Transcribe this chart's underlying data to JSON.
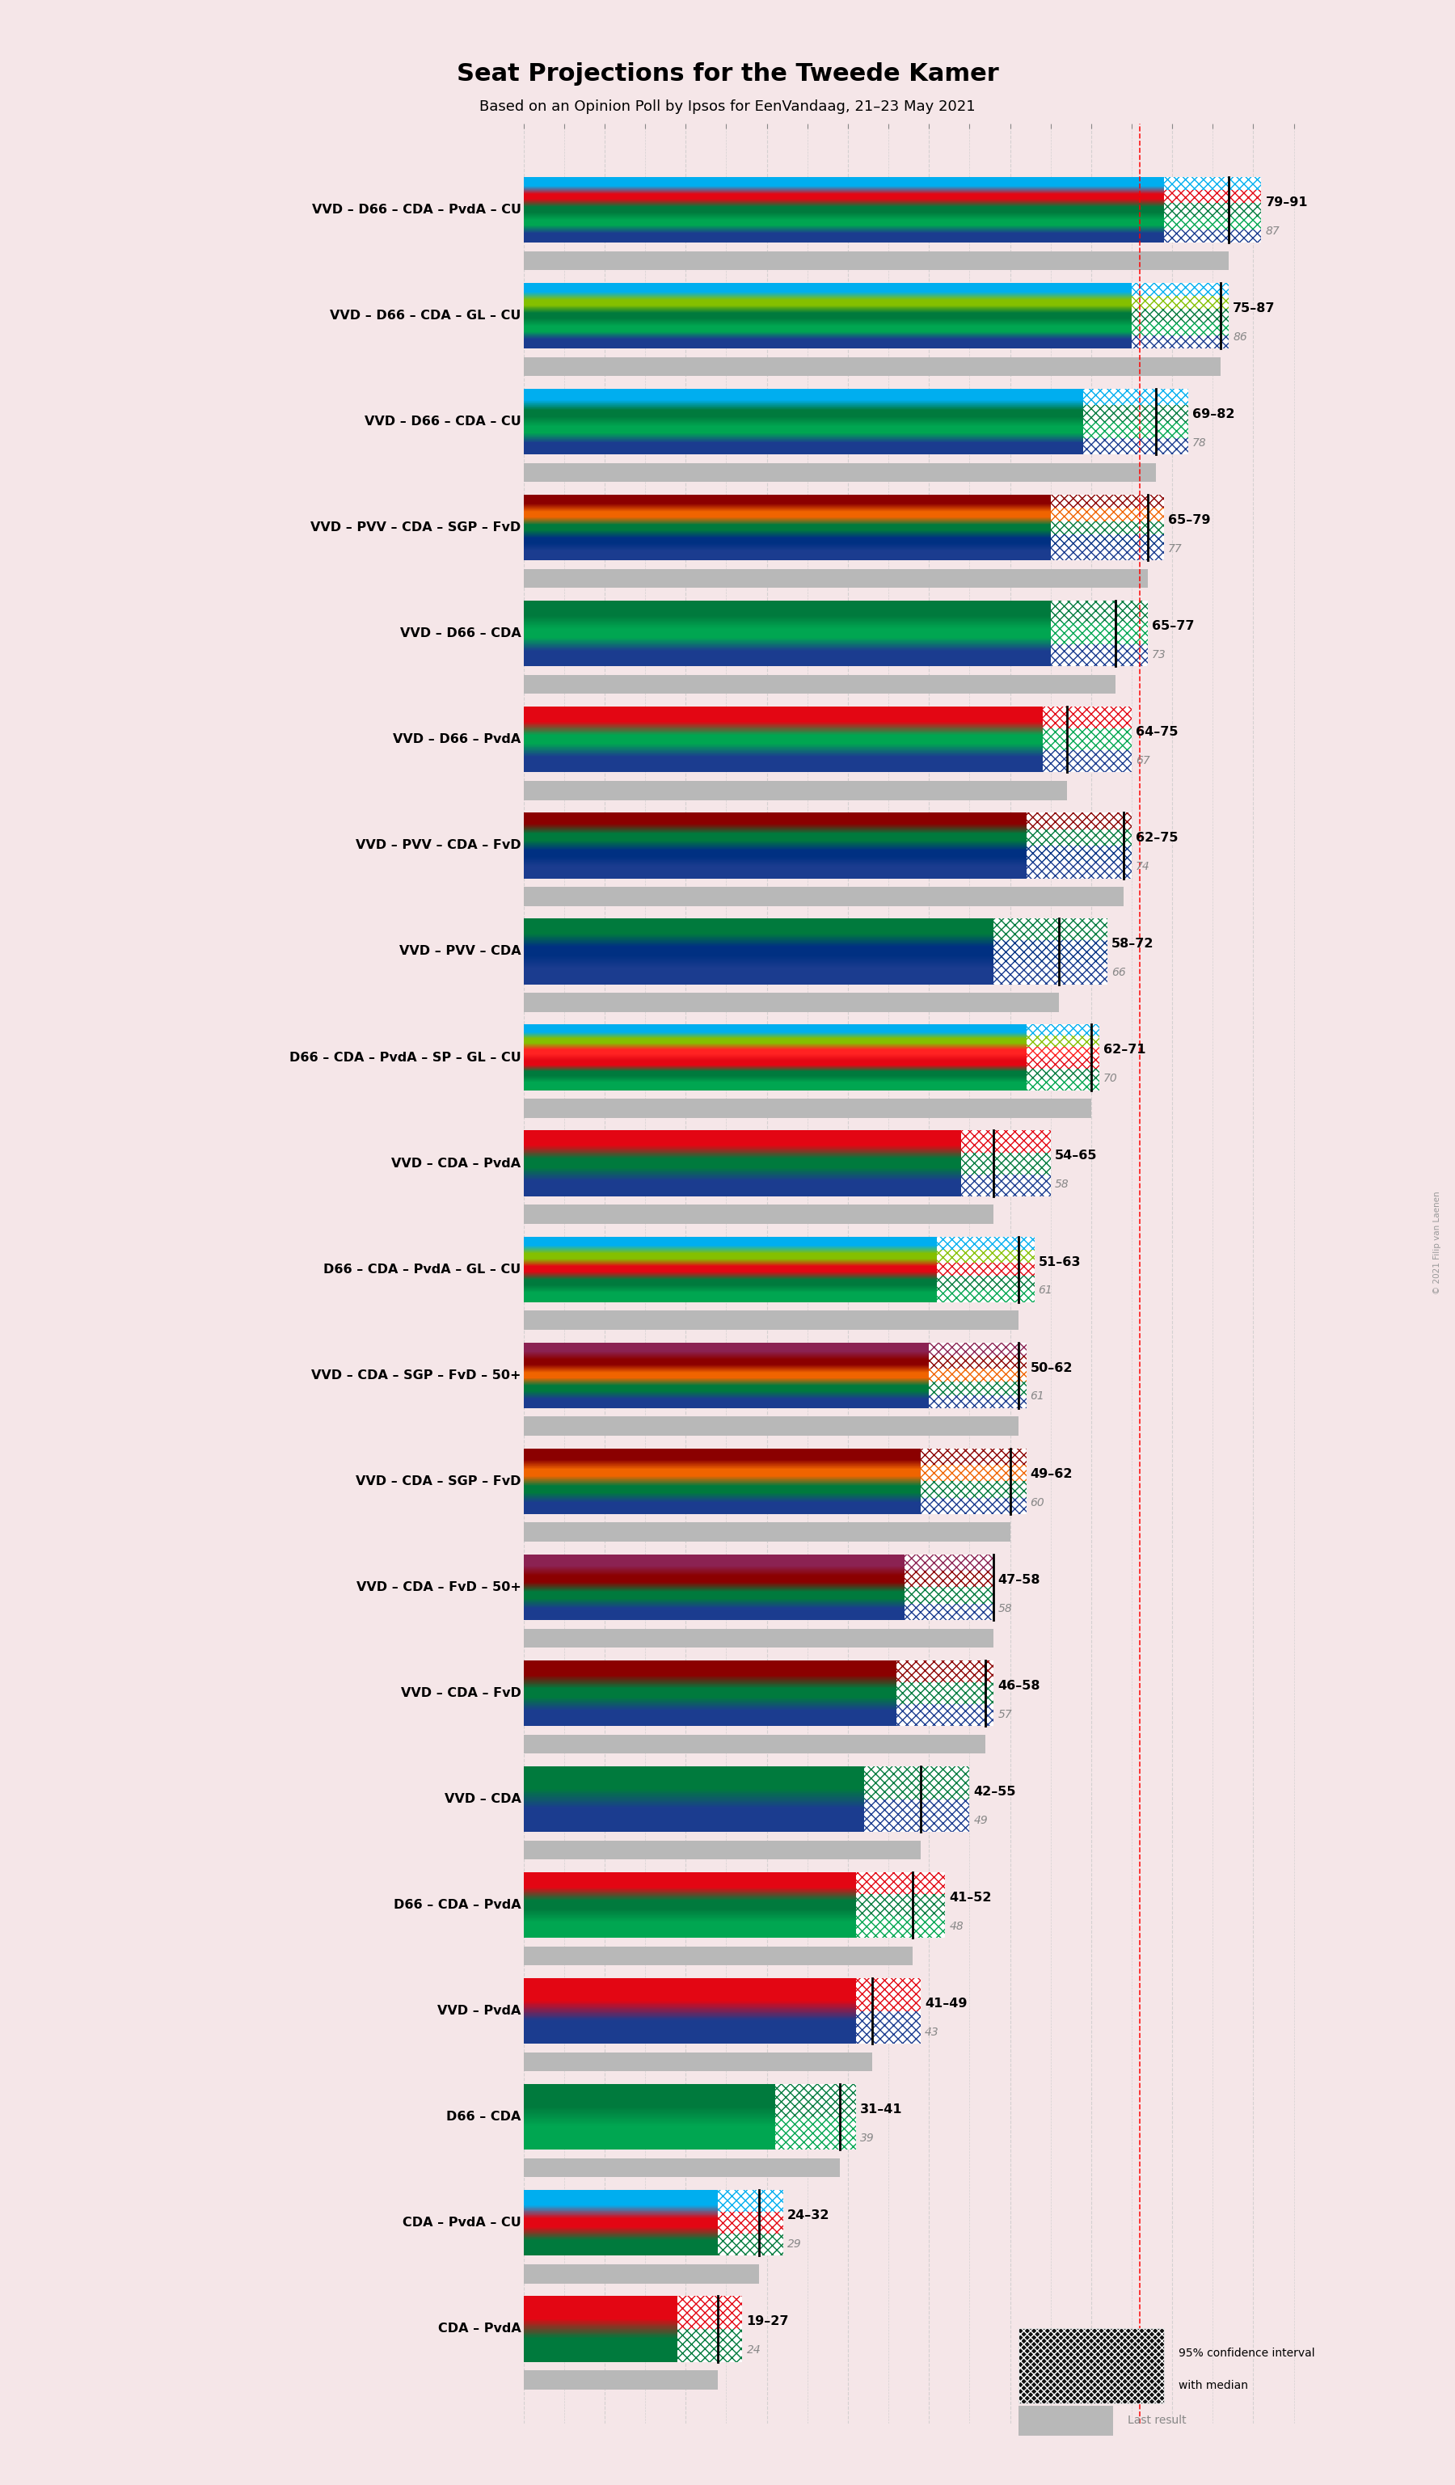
{
  "title": "Seat Projections for the Tweede Kamer",
  "subtitle": "Based on an Opinion Poll by Ipsos for EenVandaag, 21–23 May 2021",
  "background_color": "#f5e6e8",
  "x_max": 95,
  "majority_line": 76,
  "coalitions": [
    {
      "name": "VVD – D66 – CDA – PvdA – CU",
      "ci_low": 79,
      "ci_high": 91,
      "median": 87,
      "parties": [
        "VVD",
        "D66",
        "CDA",
        "PvdA",
        "CU"
      ]
    },
    {
      "name": "VVD – D66 – CDA – GL – CU",
      "ci_low": 75,
      "ci_high": 87,
      "median": 86,
      "parties": [
        "VVD",
        "D66",
        "CDA",
        "GL",
        "CU"
      ]
    },
    {
      "name": "VVD – D66 – CDA – CU",
      "ci_low": 69,
      "ci_high": 82,
      "median": 78,
      "parties": [
        "VVD",
        "D66",
        "CDA",
        "CU"
      ]
    },
    {
      "name": "VVD – PVV – CDA – SGP – FvD",
      "ci_low": 65,
      "ci_high": 79,
      "median": 77,
      "parties": [
        "VVD",
        "PVV",
        "CDA",
        "SGP",
        "FvD"
      ]
    },
    {
      "name": "VVD – D66 – CDA",
      "ci_low": 65,
      "ci_high": 77,
      "median": 73,
      "parties": [
        "VVD",
        "D66",
        "CDA"
      ]
    },
    {
      "name": "VVD – D66 – PvdA",
      "ci_low": 64,
      "ci_high": 75,
      "median": 67,
      "parties": [
        "VVD",
        "D66",
        "PvdA"
      ]
    },
    {
      "name": "VVD – PVV – CDA – FvD",
      "ci_low": 62,
      "ci_high": 75,
      "median": 74,
      "parties": [
        "VVD",
        "PVV",
        "CDA",
        "FvD"
      ]
    },
    {
      "name": "VVD – PVV – CDA",
      "ci_low": 58,
      "ci_high": 72,
      "median": 66,
      "parties": [
        "VVD",
        "PVV",
        "CDA"
      ]
    },
    {
      "name": "D66 – CDA – PvdA – SP – GL – CU",
      "ci_low": 62,
      "ci_high": 71,
      "median": 70,
      "parties": [
        "D66",
        "CDA",
        "PvdA",
        "SP",
        "GL",
        "CU"
      ]
    },
    {
      "name": "VVD – CDA – PvdA",
      "ci_low": 54,
      "ci_high": 65,
      "median": 58,
      "parties": [
        "VVD",
        "CDA",
        "PvdA"
      ]
    },
    {
      "name": "D66 – CDA – PvdA – GL – CU",
      "ci_low": 51,
      "ci_high": 63,
      "median": 61,
      "parties": [
        "D66",
        "CDA",
        "PvdA",
        "GL",
        "CU"
      ]
    },
    {
      "name": "VVD – CDA – SGP – FvD – 50+",
      "ci_low": 50,
      "ci_high": 62,
      "median": 61,
      "parties": [
        "VVD",
        "CDA",
        "SGP",
        "FvD",
        "50+"
      ]
    },
    {
      "name": "VVD – CDA – SGP – FvD",
      "ci_low": 49,
      "ci_high": 62,
      "median": 60,
      "parties": [
        "VVD",
        "CDA",
        "SGP",
        "FvD"
      ]
    },
    {
      "name": "VVD – CDA – FvD – 50+",
      "ci_low": 47,
      "ci_high": 58,
      "median": 58,
      "parties": [
        "VVD",
        "CDA",
        "FvD",
        "50+"
      ]
    },
    {
      "name": "VVD – CDA – FvD",
      "ci_low": 46,
      "ci_high": 58,
      "median": 57,
      "parties": [
        "VVD",
        "CDA",
        "FvD"
      ]
    },
    {
      "name": "VVD – CDA",
      "ci_low": 42,
      "ci_high": 55,
      "median": 49,
      "parties": [
        "VVD",
        "CDA"
      ]
    },
    {
      "name": "D66 – CDA – PvdA",
      "ci_low": 41,
      "ci_high": 52,
      "median": 48,
      "parties": [
        "D66",
        "CDA",
        "PvdA"
      ]
    },
    {
      "name": "VVD – PvdA",
      "ci_low": 41,
      "ci_high": 49,
      "median": 43,
      "parties": [
        "VVD",
        "PvdA"
      ]
    },
    {
      "name": "D66 – CDA",
      "ci_low": 31,
      "ci_high": 41,
      "median": 39,
      "parties": [
        "D66",
        "CDA"
      ]
    },
    {
      "name": "CDA – PvdA – CU",
      "ci_low": 24,
      "ci_high": 32,
      "median": 29,
      "parties": [
        "CDA",
        "PvdA",
        "CU"
      ]
    },
    {
      "name": "CDA – PvdA",
      "ci_low": 19,
      "ci_high": 27,
      "median": 24,
      "parties": [
        "CDA",
        "PvdA"
      ]
    }
  ],
  "party_colors": {
    "VVD": "#1B3C8F",
    "D66": "#00A651",
    "CDA": "#007A3D",
    "PvdA": "#E30613",
    "CU": "#00AEEF",
    "GL": "#84C000",
    "PVV": "#003082",
    "SGP": "#F06400",
    "FvD": "#8B0000",
    "SP": "#FF2222",
    "50+": "#8B2252"
  }
}
